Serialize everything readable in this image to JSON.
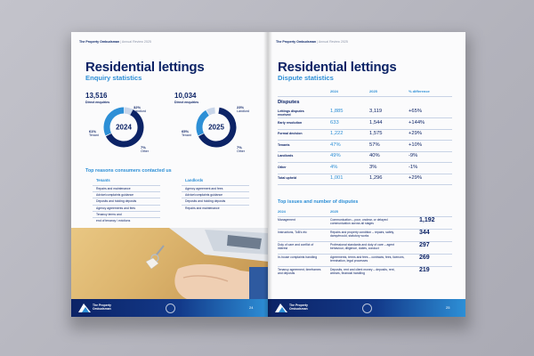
{
  "left_page": {
    "header": {
      "org": "The Property Ombudsman",
      "sep": "|",
      "doc": "Annual Review 2025"
    },
    "title": "Residential lettings",
    "subtitle": "Enquiry statistics",
    "donut_2024": {
      "total": "13,516",
      "total_label": "Direct enquiries",
      "year": "2024",
      "landlord_pct": "32%",
      "landlord_label": "Landlord",
      "tenant_pct": "61%",
      "tenant_label": "Tenant",
      "other_pct": "7%",
      "other_label": "Other",
      "fractions": [
        0.61,
        0.32,
        0.07
      ]
    },
    "donut_2025": {
      "total": "10,034",
      "total_label": "Direct enquiries",
      "year": "2025",
      "landlord_pct": "23%",
      "landlord_label": "Landlord",
      "tenant_pct": "65%",
      "tenant_label": "Tenant",
      "other_pct": "7%",
      "other_label": "Other",
      "fractions": [
        0.65,
        0.23,
        0.07
      ]
    },
    "reasons_title": "Top reasons consumers contacted us",
    "tenants_head": "Tenants",
    "tenants": [
      "Repairs and maintenance",
      "Advice/complaints guidance",
      "Deposits and holding deposits",
      "Agency agreements and fees",
      "Tenancy terms and",
      "end of tenancy / evictions"
    ],
    "landlords_head": "Landlords",
    "landlords": [
      "Agency agreement and fees",
      "Advice/complaints guidance",
      "Deposits and holding deposits",
      "Repairs and maintenance"
    ],
    "footer": {
      "brand_line1": "The Property",
      "brand_line2": "Ombudsman",
      "page": "24"
    }
  },
  "right_page": {
    "header": {
      "org": "The Property Ombudsman",
      "sep": "|",
      "doc": "Annual Review 2025"
    },
    "title": "Residential lettings",
    "subtitle": "Dispute statistics",
    "col_2024": "2024",
    "col_2025": "2025",
    "col_diff": "% difference",
    "disputes_head": "Disputes",
    "rows": [
      {
        "label": "Lettings disputes received",
        "v2024": "1,885",
        "v2025": "3,119",
        "diff": "+65%"
      },
      {
        "label": "Early resolution",
        "v2024": "633",
        "v2025": "1,544",
        "diff": "+144%"
      },
      {
        "label": "Formal decision",
        "v2024": "1,222",
        "v2025": "1,575",
        "diff": "+29%"
      },
      {
        "label": "Tenants",
        "v2024": "47%",
        "v2025": "57%",
        "diff": "+10%"
      },
      {
        "label": "Landlords",
        "v2024": "49%",
        "v2025": "40%",
        "diff": "-9%"
      },
      {
        "label": "Other",
        "v2024": "4%",
        "v2025": "3%",
        "diff": "-1%"
      },
      {
        "label": "Total upheld",
        "v2024": "1,001",
        "v2025": "1,296",
        "diff": "+29%"
      }
    ],
    "issues_title": "Top issues and number of disputes",
    "issues_col_2024": "2024",
    "issues_col_2025": "2025",
    "issues": [
      {
        "a": "Management",
        "b": "Communication – poor, unclear, or delayed communication across all stages",
        "n": "1,192"
      },
      {
        "a": "Instructions, ToB's etc",
        "b": "Repairs and property condition – repairs, safety, damp/mould, statutory works",
        "n": "344"
      },
      {
        "a": "Duty of care and conflict of interest",
        "b": "Professional standards and duty of care – agent behaviour, diligence, duties, conduct",
        "n": "297"
      },
      {
        "a": "In-house complaints handling",
        "b": "Agreements, terms and fees – contracts, fees, licences, termination, legal processes",
        "n": "269"
      },
      {
        "a": "Tenancy agreement, timeframes and deposits",
        "b": "Deposits, rent and client money – deposits, rent, arrears, financial handling",
        "n": "219"
      }
    ],
    "footer": {
      "brand_line1": "The Property",
      "brand_line2": "Ombudsman",
      "page": "25"
    }
  },
  "colors": {
    "navy": "#0c2366",
    "blue": "#2d8fd6",
    "light": "#c9d6ea"
  }
}
